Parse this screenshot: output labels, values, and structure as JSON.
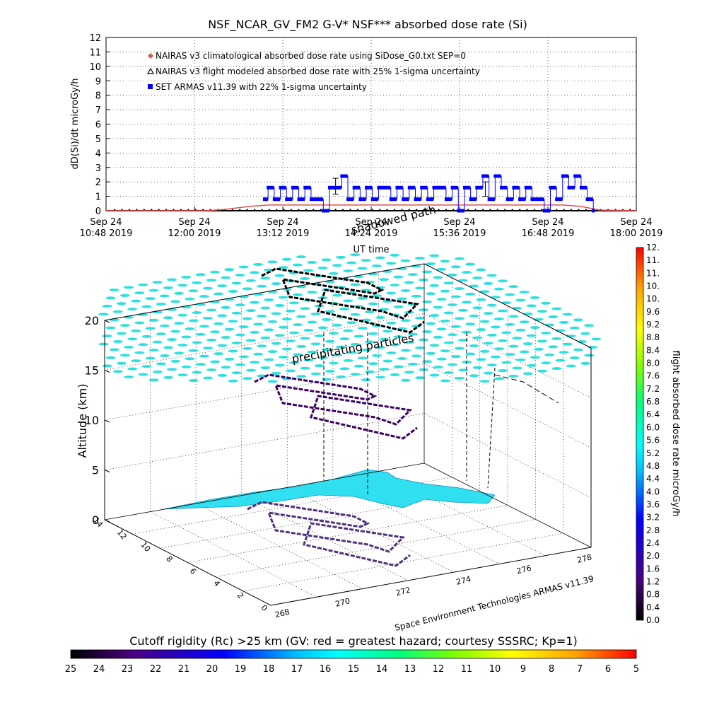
{
  "title": "NSF_NCAR_GV_FM2 G-V* NSF*** absorbed dose rate (Si)",
  "chart_data": [
    {
      "type": "line",
      "title": "NSF_NCAR_GV_FM2 G-V* NSF*** absorbed dose rate (Si)",
      "xlabel": "UT time",
      "ylabel": "dD(Si)/dt microGy/h",
      "ylim": [
        0,
        12
      ],
      "yticks": [
        "0",
        "1",
        "2",
        "3",
        "4",
        "5",
        "6",
        "7",
        "8",
        "9",
        "10",
        "11",
        "12"
      ],
      "xticks": [
        {
          "date": "Sep 24",
          "time": "10:48",
          "year": "2019"
        },
        {
          "date": "Sep 24",
          "time": "12:00",
          "year": "2019"
        },
        {
          "date": "Sep 24",
          "time": "13:12",
          "year": "2019"
        },
        {
          "date": "Sep 24",
          "time": "14:24",
          "year": "2019"
        },
        {
          "date": "Sep 24",
          "time": "15:36",
          "year": "2019"
        },
        {
          "date": "Sep 24",
          "time": "16:48",
          "year": "2019"
        },
        {
          "date": "Sep 24",
          "time": "18:00",
          "year": "2019"
        }
      ],
      "grid": true,
      "legend_position": "top-left",
      "legend": [
        "NAIRAS v3 climatological absorbed dose rate using SiDose_G0.txt SEP=0",
        "NAIRAS v3 flight modeled absorbed dose rate with 25% 1-sigma uncertainty",
        "SET ARMAS v11.39 with 22% 1-sigma uncertainty"
      ],
      "series": [
        {
          "name": "NAIRAS v3 climatological absorbed dose rate using SiDose_G0.txt SEP=0",
          "color": "#e05050",
          "x": [
            "10:48",
            "12:10",
            "12:25",
            "12:45",
            "13:00",
            "17:00",
            "17:15",
            "17:30",
            "18:00"
          ],
          "y": [
            0.0,
            0.0,
            0.1,
            0.3,
            0.4,
            0.4,
            0.3,
            0.05,
            0.0
          ]
        },
        {
          "name": "NAIRAS v3 flight modeled absorbed dose rate with 25% 1-sigma uncertainty",
          "color": "#000000",
          "x": [
            "10:48",
            "18:00"
          ],
          "y": [
            0.0,
            0.0
          ]
        },
        {
          "name": "SET ARMAS v11.39 with 22% 1-sigma uncertainty",
          "color": "#0000ff",
          "x": [
            "12:57",
            "13:00",
            "13:05",
            "13:10",
            "13:15",
            "13:20",
            "13:25",
            "13:30",
            "13:35",
            "13:40",
            "13:45",
            "13:50",
            "13:55",
            "14:00",
            "14:05",
            "14:10",
            "14:15",
            "14:20",
            "14:25",
            "14:30",
            "14:35",
            "14:40",
            "14:45",
            "14:50",
            "14:55",
            "15:00",
            "15:05",
            "15:10",
            "15:15",
            "15:20",
            "15:25",
            "15:30",
            "15:35",
            "15:40",
            "15:45",
            "15:50",
            "15:55",
            "16:00",
            "16:05",
            "16:10",
            "16:15",
            "16:20",
            "16:25",
            "16:30",
            "16:35",
            "16:40",
            "16:45",
            "16:50",
            "16:55",
            "17:00",
            "17:05",
            "17:10",
            "17:15",
            "17:20",
            "17:25"
          ],
          "y": [
            0.8,
            1.6,
            0.8,
            1.6,
            0.8,
            1.6,
            0.8,
            1.6,
            0.8,
            0.8,
            0.0,
            1.6,
            1.6,
            2.4,
            0.8,
            1.6,
            0.8,
            1.6,
            0.8,
            1.6,
            1.6,
            0.8,
            1.6,
            0.8,
            1.6,
            0.8,
            1.6,
            0.8,
            1.6,
            1.6,
            0.8,
            1.6,
            0.0,
            1.6,
            0.8,
            1.6,
            2.4,
            0.8,
            2.4,
            1.6,
            0.8,
            1.6,
            0.8,
            1.6,
            0.8,
            0.8,
            0.0,
            1.6,
            0.8,
            2.4,
            1.6,
            2.4,
            1.6,
            0.8,
            0.0
          ],
          "error_bars": [
            {
              "x": "13:55",
              "y": 1.7,
              "err": 0.55
            },
            {
              "x": "15:57",
              "y": 1.5,
              "err": 0.5
            }
          ]
        }
      ]
    },
    {
      "type": "scatter",
      "title": "",
      "zlabel": "Altitude (km)",
      "zlim": [
        0,
        20
      ],
      "zticks": [
        "0",
        "5",
        "10",
        "15",
        "20"
      ],
      "xticks": [
        "268",
        "270",
        "272",
        "274",
        "276",
        "278"
      ],
      "yticks": [
        "0",
        "2",
        "4",
        "6",
        "8",
        "10",
        "12",
        "14"
      ],
      "annotations": [
        "shadowed path",
        "precipitating particles",
        "Space Environment Technologies ARMAS v11.39"
      ],
      "colorbar": {
        "label": "flight absorbed dose rate microGy/h",
        "range": [
          0.0,
          12.0
        ],
        "ticks": [
          "0.0",
          "0.4",
          "0.8",
          "1.2",
          "1.6",
          "2.0",
          "2.4",
          "2.8",
          "3.2",
          "3.6",
          "4.0",
          "4.4",
          "4.8",
          "5.2",
          "5.6",
          "6.0",
          "6.4",
          "6.8",
          "7.2",
          "7.6",
          "8.0",
          "8.4",
          "8.8",
          "9.2",
          "9.6",
          "10.",
          "10.",
          "11.",
          "11.",
          "12."
        ]
      },
      "flight_track": {
        "lon": [
          270.2,
          271.0,
          271.8,
          272.6,
          273.4,
          274.2,
          273.4,
          272.6,
          271.8,
          271.0,
          271.0,
          271.8,
          272.6,
          273.4,
          274.2,
          273.4,
          272.6
        ],
        "lat": [
          9.0,
          9.3,
          9.6,
          9.9,
          10.2,
          10.5,
          10.8,
          11.0,
          10.6,
          10.2,
          9.0,
          8.8,
          8.6,
          8.4,
          8.2,
          8.0,
          7.8
        ],
        "alt": [
          13.5,
          13.5,
          13.4,
          13.4,
          13.3,
          13.3,
          13.2,
          13.2,
          13.1,
          13.1,
          12.0,
          12.0,
          11.9,
          11.9,
          11.8,
          11.8,
          11.8
        ]
      }
    },
    {
      "type": "heatmap",
      "title": "Cutoff rigidity (Rc) >25 km (GV: red = greatest hazard; courtesy SSSRC; Kp=1)",
      "ticks": [
        "25",
        "24",
        "23",
        "22",
        "21",
        "20",
        "19",
        "18",
        "17",
        "16",
        "15",
        "14",
        "13",
        "12",
        "11",
        "10",
        "9",
        "8",
        "7",
        "6",
        "5"
      ],
      "range": [
        25,
        5
      ],
      "colors": [
        "#000000",
        "#4b0082",
        "#0000ff",
        "#00bfff",
        "#00ffff",
        "#00ff7f",
        "#7fff00",
        "#ffff00",
        "#ffa500",
        "#ff0000"
      ]
    }
  ]
}
